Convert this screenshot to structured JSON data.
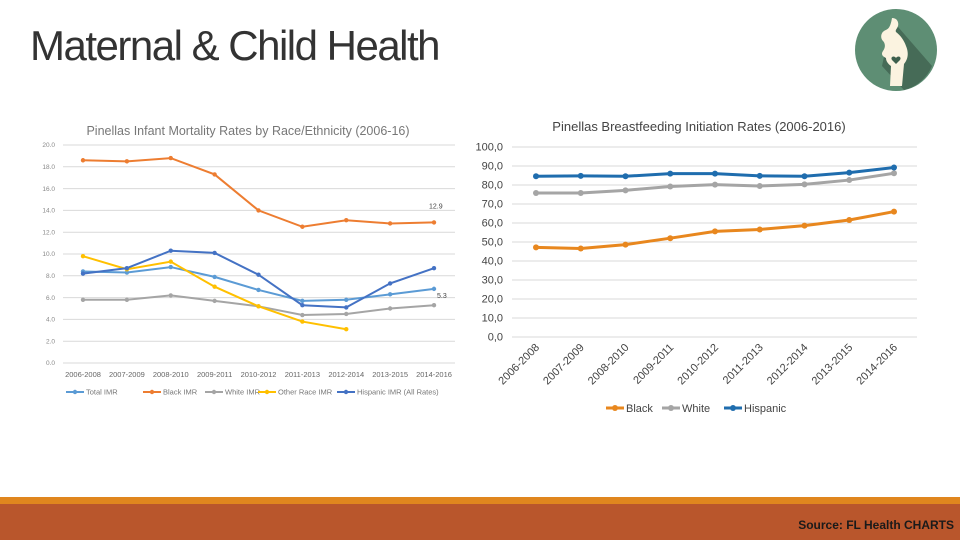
{
  "slide": {
    "title": "Maternal & Child Health",
    "source": "Source: FL Health CHARTS",
    "logo_icon": "pregnant-woman-heart-icon",
    "colors": {
      "logo": "#5E8E74",
      "footer_stripe": "#E0861E",
      "footer": "#B9562C"
    }
  },
  "chart_data": [
    {
      "type": "line",
      "title": "Pinellas Infant Mortality Rates by Race/Ethnicity (2006-16)",
      "categories": [
        "2006-2008",
        "2007-2009",
        "2008-2010",
        "2009-2011",
        "2010-2012",
        "2011-2013",
        "2012-2014",
        "2013-2015",
        "2014-2016"
      ],
      "ylim": [
        0,
        20
      ],
      "yticks": [
        "0.0",
        "2.0",
        "4.0",
        "6.0",
        "8.0",
        "10.0",
        "12.0",
        "14.0",
        "16.0",
        "18.0",
        "20.0"
      ],
      "grid": true,
      "legend": "bottom",
      "annotations": [
        {
          "series": "Black IMR",
          "text": "12.9"
        },
        {
          "series": "White IMR",
          "text": "5.3"
        }
      ],
      "series": [
        {
          "name": "Total IMR",
          "color": "#5B9BD5",
          "values": [
            8.4,
            8.3,
            8.8,
            7.9,
            6.7,
            5.7,
            5.8,
            6.3,
            6.8
          ]
        },
        {
          "name": "Black IMR",
          "color": "#ED7D31",
          "values": [
            18.6,
            18.5,
            18.8,
            17.3,
            14.0,
            12.5,
            13.1,
            12.8,
            12.9
          ]
        },
        {
          "name": "White IMR",
          "color": "#A5A5A5",
          "values": [
            5.8,
            5.8,
            6.2,
            5.7,
            5.2,
            4.4,
            4.5,
            5.0,
            5.3
          ]
        },
        {
          "name": "Other Race IMR",
          "color": "#FFC000",
          "values": [
            9.8,
            8.6,
            9.3,
            7.0,
            5.2,
            3.8,
            3.1,
            null,
            null
          ]
        },
        {
          "name": "Hispanic IMR (All Rates)",
          "color": "#4472C4",
          "values": [
            8.2,
            8.7,
            10.3,
            10.1,
            8.1,
            5.3,
            5.1,
            7.3,
            8.7
          ]
        }
      ]
    },
    {
      "type": "line",
      "title": "Pinellas Breastfeeding Initiation Rates (2006-2016)",
      "categories": [
        "2006-2008",
        "2007-2009",
        "2008-2010",
        "2009-2011",
        "2010-2012",
        "2011-2013",
        "2012-2014",
        "2013-2015",
        "2014-2016"
      ],
      "ylim": [
        0,
        100
      ],
      "yticks": [
        "0,0",
        "10,0",
        "20,0",
        "30,0",
        "40,0",
        "50,0",
        "60,0",
        "70,0",
        "80,0",
        "90,0",
        "100,0"
      ],
      "grid": true,
      "legend": "bottom",
      "series": [
        {
          "name": "Black",
          "color": "#E8871E",
          "values": [
            47.2,
            46.6,
            48.6,
            52.0,
            55.6,
            56.6,
            58.6,
            61.6,
            66.0
          ]
        },
        {
          "name": "White",
          "color": "#A5A5A5",
          "values": [
            75.8,
            75.8,
            77.2,
            79.2,
            80.2,
            79.5,
            80.3,
            82.6,
            86.2
          ]
        },
        {
          "name": "Hispanic",
          "color": "#1F6DAE",
          "values": [
            84.6,
            84.8,
            84.6,
            86.0,
            86.0,
            84.8,
            84.6,
            86.5,
            89.2
          ]
        }
      ]
    }
  ]
}
